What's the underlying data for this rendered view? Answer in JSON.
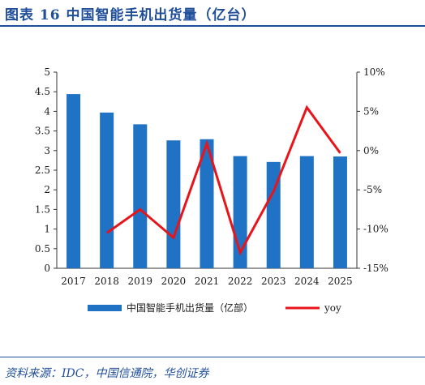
{
  "header": {
    "title": "图表 16   中国智能手机出货量（亿台）"
  },
  "footer": {
    "source": "资料来源：IDC，中国信通院，华创证券"
  },
  "colors": {
    "bar": "#1f72c4",
    "line": "#e8141a",
    "accent": "#1f4e9a"
  },
  "chart_data": {
    "type": "bar",
    "categories": [
      "2017",
      "2018",
      "2019",
      "2020",
      "2021",
      "2022",
      "2023",
      "2024",
      "2025"
    ],
    "series": [
      {
        "name": "中国智能手机出货量（亿部）",
        "type": "bar",
        "axis": "left",
        "values": [
          4.44,
          3.97,
          3.67,
          3.26,
          3.29,
          2.86,
          2.71,
          2.86,
          2.85
        ]
      },
      {
        "name": "yoy",
        "type": "line",
        "axis": "right",
        "values": [
          null,
          -10.5,
          -7.5,
          -11.1,
          0.9,
          -13.0,
          -5.2,
          5.5,
          -0.3
        ]
      }
    ],
    "left_axis": {
      "ylim": [
        0,
        5
      ],
      "ticks": [
        0,
        0.5,
        1,
        1.5,
        2,
        2.5,
        3,
        3.5,
        4,
        4.5,
        5
      ],
      "tick_labels": [
        "0",
        "0.5",
        "1",
        "1.5",
        "2",
        "2.5",
        "3",
        "3.5",
        "4",
        "4.5",
        "5"
      ]
    },
    "right_axis": {
      "ylim": [
        -15,
        10
      ],
      "ticks": [
        -15,
        -10,
        -5,
        0,
        5,
        10
      ],
      "tick_labels": [
        "-15%",
        "-10%",
        "-5%",
        "0%",
        "5%",
        "10%"
      ]
    },
    "legend": {
      "placement": "bottom",
      "items": [
        "中国智能手机出货量（亿部）",
        "yoy"
      ]
    },
    "grid": false
  }
}
